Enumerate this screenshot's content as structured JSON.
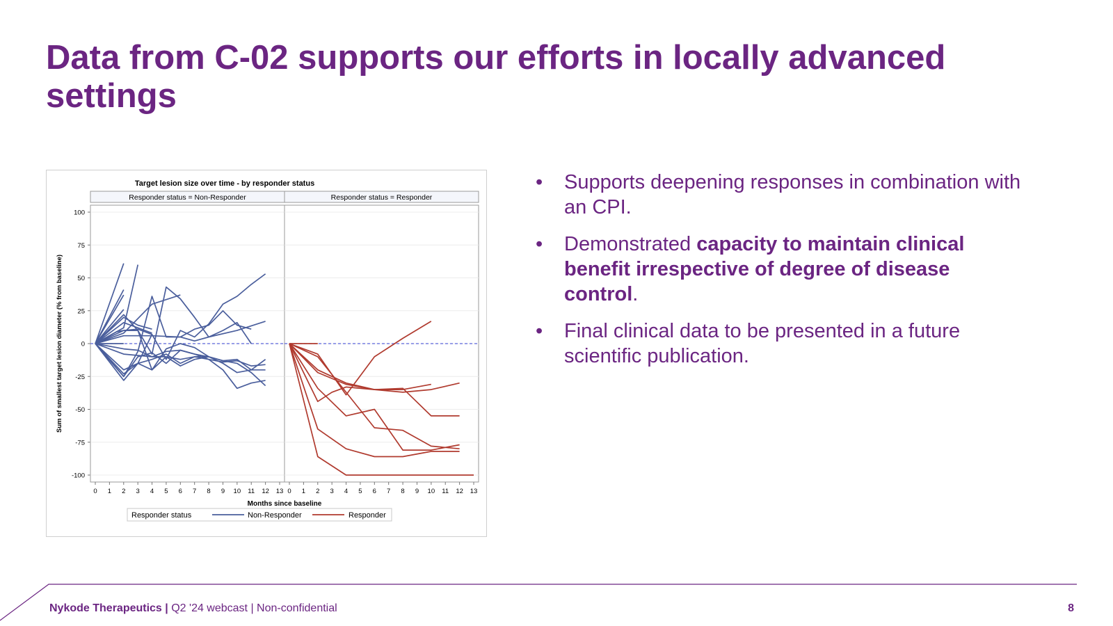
{
  "slide": {
    "title": "Data from C-02 supports our efforts in locally advanced settings",
    "bullets": [
      {
        "parts": [
          {
            "text": "Supports deepening responses in combination with an CPI.",
            "bold": false
          }
        ]
      },
      {
        "parts": [
          {
            "text": "Demonstrated ",
            "bold": false
          },
          {
            "text": "capacity to maintain clinical benefit irrespective of degree of disease control",
            "bold": true
          },
          {
            "text": ".",
            "bold": false
          }
        ]
      },
      {
        "parts": [
          {
            "text": "Final clinical data to be presented in a future scientific publication.",
            "bold": false
          }
        ]
      }
    ],
    "bullet_glyph": "•"
  },
  "footer": {
    "company": "Nykode Therapeutics",
    "separator": "|",
    "detail": "Q2 '24 webcast | Non-confidential",
    "page": "8"
  },
  "colors": {
    "brand": "#6b2582",
    "non_responder": "#4a5e9c",
    "responder": "#b03a2e",
    "reference": "#5a63d9"
  },
  "chart_data": {
    "type": "line",
    "title": "Target lesion size over time - by responder status",
    "xlabel": "Months since baseline",
    "ylabel": "Sum of smallest target lesion diameter (% from baseline)",
    "xlim": [
      0,
      13
    ],
    "ylim": [
      -100,
      100
    ],
    "xticks": [
      0,
      1,
      2,
      3,
      4,
      5,
      6,
      7,
      8,
      9,
      10,
      11,
      12,
      13
    ],
    "yticks": [
      100,
      75,
      50,
      25,
      0,
      -25,
      -50,
      -75,
      -100
    ],
    "reference_line_y": 0,
    "legend": {
      "title": "Responder status",
      "entries": [
        "Non-Responder",
        "Responder"
      ],
      "position": "bottom"
    },
    "panels": [
      {
        "label": "Responder status = Non-Responder",
        "color_key": "non_responder",
        "series": [
          {
            "x": [
              0,
              2
            ],
            "y": [
              0,
              61
            ]
          },
          {
            "x": [
              0,
              2
            ],
            "y": [
              0,
              41
            ]
          },
          {
            "x": [
              0,
              2
            ],
            "y": [
              0,
              37
            ]
          },
          {
            "x": [
              0,
              2,
              3
            ],
            "y": [
              0,
              12,
              60
            ]
          },
          {
            "x": [
              0,
              2
            ],
            "y": [
              0,
              26
            ]
          },
          {
            "x": [
              0,
              2,
              4,
              6
            ],
            "y": [
              0,
              8,
              30,
              37
            ]
          },
          {
            "x": [
              0,
              2,
              3,
              4
            ],
            "y": [
              0,
              20,
              14,
              11
            ]
          },
          {
            "x": [
              0,
              2,
              4,
              6,
              7,
              8,
              10,
              12
            ],
            "y": [
              0,
              6,
              6,
              5,
              2,
              5,
              10,
              17
            ]
          },
          {
            "x": [
              0,
              2,
              3,
              4
            ],
            "y": [
              0,
              16,
              12,
              8
            ]
          },
          {
            "x": [
              0,
              1.5,
              2,
              3,
              4
            ],
            "y": [
              0,
              9,
              10,
              11,
              7
            ]
          },
          {
            "x": [
              0,
              2,
              3,
              4,
              5,
              6,
              7,
              8,
              9,
              10,
              11
            ],
            "y": [
              0,
              -25,
              -6,
              36,
              5,
              5,
              11,
              14,
              25,
              14,
              11
            ]
          },
          {
            "x": [
              0,
              2,
              3,
              4,
              5,
              6,
              7,
              8,
              9,
              10,
              11
            ],
            "y": [
              0,
              22,
              10,
              -8,
              43,
              34,
              20,
              5,
              10,
              16,
              0
            ]
          },
          {
            "x": [
              0,
              2,
              3,
              4,
              5,
              6,
              7,
              8,
              9,
              10,
              11,
              12
            ],
            "y": [
              0,
              -28,
              -15,
              7,
              -12,
              10,
              5,
              15,
              30,
              36,
              45,
              53
            ]
          },
          {
            "x": [
              0,
              2,
              3,
              4,
              5,
              6,
              7,
              8,
              9,
              10,
              11,
              12
            ],
            "y": [
              0,
              10,
              10,
              -20,
              -4,
              0,
              -3,
              -10,
              -15,
              -22,
              -20,
              -12
            ]
          },
          {
            "x": [
              0,
              2,
              3,
              4,
              5,
              6,
              7,
              8,
              9,
              10,
              11,
              12
            ],
            "y": [
              0,
              -20,
              -15,
              -20,
              -10,
              -17,
              -12,
              -10,
              -13,
              -12,
              -20,
              -20
            ]
          },
          {
            "x": [
              0,
              2,
              3,
              4,
              5,
              6,
              7,
              8,
              9,
              10,
              11,
              12
            ],
            "y": [
              0,
              -25,
              -10,
              -7,
              -15,
              -5,
              -8,
              -12,
              -20,
              -34,
              -30,
              -28
            ]
          },
          {
            "x": [
              0,
              2,
              3,
              4,
              5,
              6,
              7,
              8,
              9,
              10,
              11,
              12
            ],
            "y": [
              0,
              -4,
              -5,
              -10,
              -6,
              -5,
              -8,
              -10,
              -13,
              -15,
              -22,
              -32
            ]
          },
          {
            "x": [
              0,
              2,
              3,
              4,
              5,
              6,
              7,
              8,
              9,
              10,
              11,
              12
            ],
            "y": [
              0,
              -8,
              -9,
              -10,
              -10,
              -12,
              -10,
              -12,
              -14,
              -13,
              -17,
              -16
            ]
          },
          {
            "x": [
              0,
              2,
              3,
              4,
              5,
              6,
              7,
              8
            ],
            "y": [
              0,
              -23,
              -15,
              -12,
              -8,
              -15,
              -10,
              -10
            ]
          },
          {
            "x": [
              0,
              1,
              2
            ],
            "y": [
              0,
              0,
              0
            ]
          }
        ]
      },
      {
        "label": "Responder status = Responder",
        "color_key": "responder",
        "series": [
          {
            "x": [
              0,
              2,
              4,
              6,
              8,
              10
            ],
            "y": [
              0,
              -8,
              -39,
              -10,
              4,
              17
            ]
          },
          {
            "x": [
              0,
              2,
              4,
              6,
              8,
              10,
              12
            ],
            "y": [
              0,
              -20,
              -30,
              -35,
              -37,
              -35,
              -30
            ]
          },
          {
            "x": [
              0,
              2,
              3,
              4,
              6,
              8,
              10
            ],
            "y": [
              0,
              -44,
              -37,
              -33,
              -35,
              -35,
              -31
            ]
          },
          {
            "x": [
              0,
              2,
              4,
              6,
              8,
              10,
              12
            ],
            "y": [
              0,
              -22,
              -31,
              -35,
              -34,
              -55,
              -55
            ]
          },
          {
            "x": [
              0,
              2,
              4,
              6,
              8,
              10,
              12
            ],
            "y": [
              0,
              -34,
              -55,
              -50,
              -81,
              -81,
              -77
            ]
          },
          {
            "x": [
              0,
              2,
              4,
              6,
              8,
              10,
              12
            ],
            "y": [
              0,
              -10,
              -37,
              -64,
              -66,
              -78,
              -80
            ]
          },
          {
            "x": [
              0,
              2,
              4,
              6,
              8,
              10,
              12
            ],
            "y": [
              0,
              -65,
              -80,
              -86,
              -86,
              -82,
              -82
            ]
          },
          {
            "x": [
              0,
              2,
              4,
              6,
              8,
              10,
              12,
              13
            ],
            "y": [
              0,
              -86,
              -100,
              -100,
              -100,
              -100,
              -100,
              -100
            ]
          },
          {
            "x": [
              0,
              1,
              2
            ],
            "y": [
              0,
              0,
              0
            ]
          }
        ]
      }
    ]
  }
}
